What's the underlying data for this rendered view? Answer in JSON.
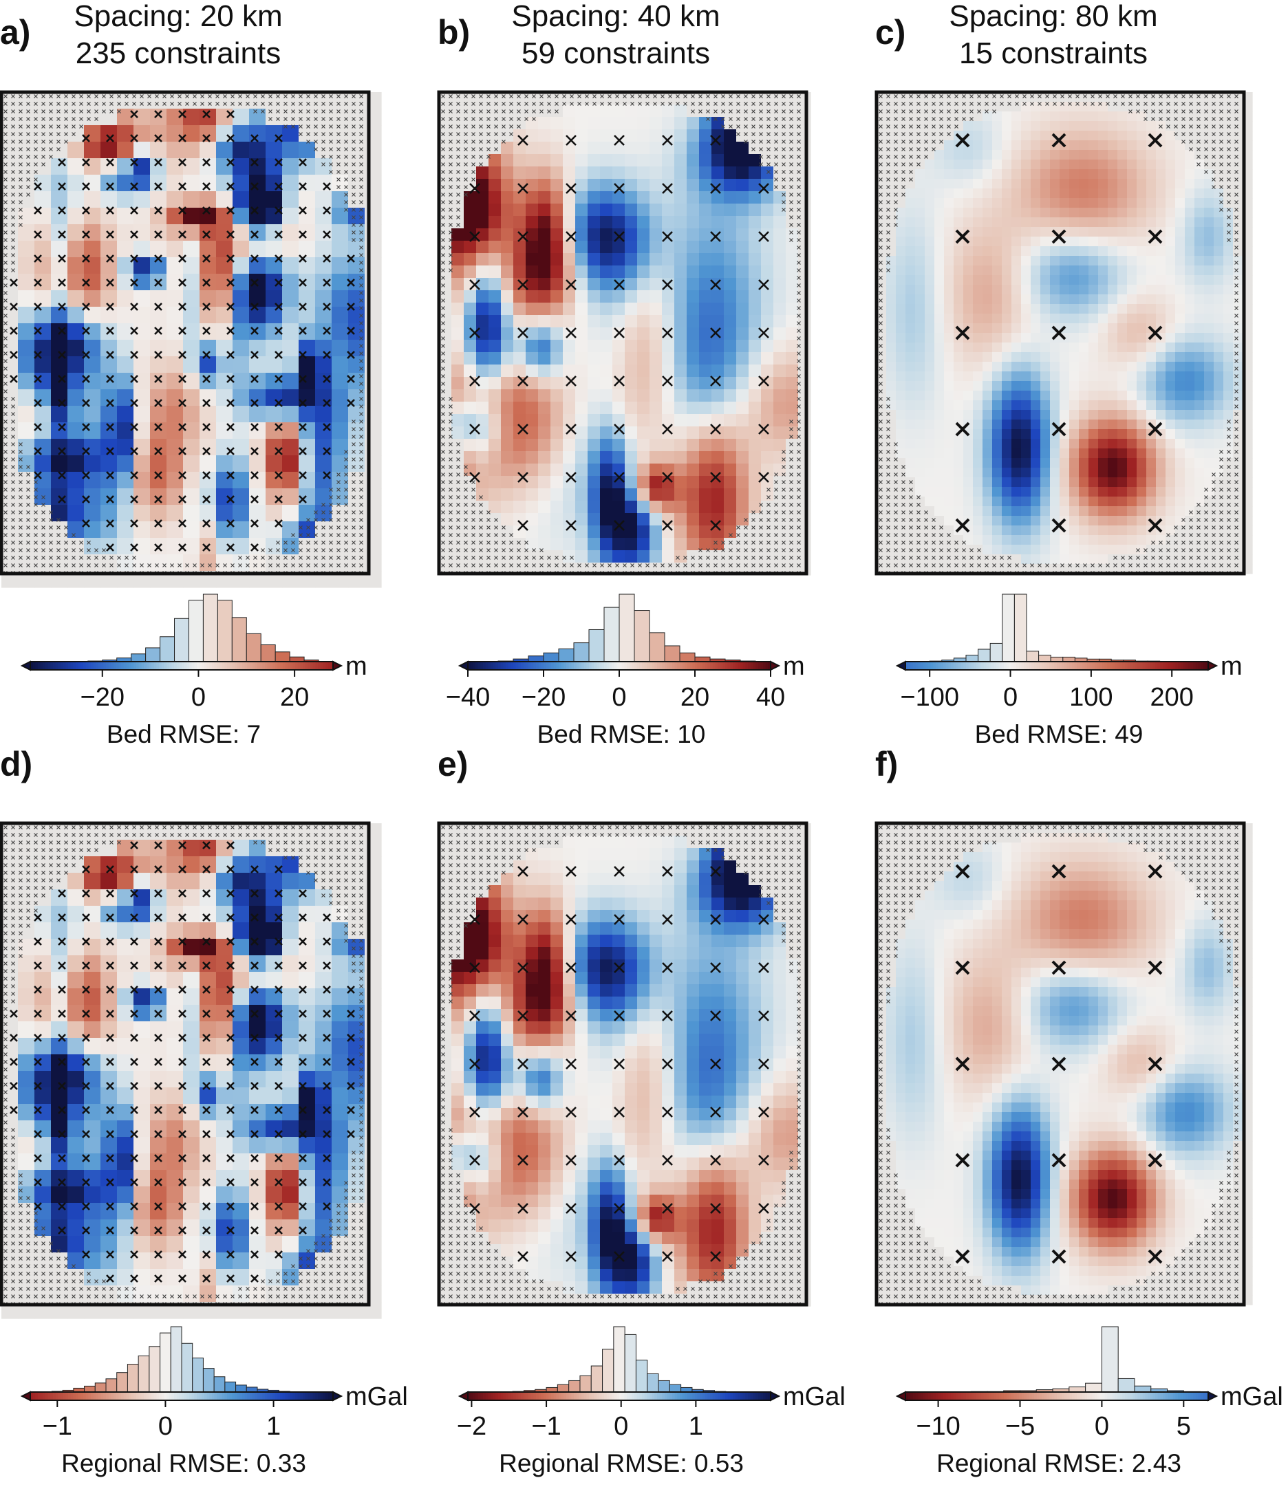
{
  "figure": {
    "panels": [
      {
        "letter": "a)",
        "title": [
          "Spacing: 20 km",
          "235 constraints"
        ],
        "unit": "m",
        "stat": "Bed RMSE: 7"
      },
      {
        "letter": "b)",
        "title": [
          "Spacing: 40 km",
          "59 constraints"
        ],
        "unit": "m",
        "stat": "Bed RMSE: 10"
      },
      {
        "letter": "c)",
        "title": [
          "Spacing: 80 km",
          "15 constraints"
        ],
        "unit": "m",
        "stat": "Bed RMSE: 49"
      },
      {
        "letter": "d)",
        "title": [],
        "unit": "mGal",
        "stat": "Regional RMSE: 0.33"
      },
      {
        "letter": "e)",
        "title": [],
        "unit": "mGal",
        "stat": "Regional RMSE: 0.53"
      },
      {
        "letter": "f)",
        "title": [],
        "unit": "mGal",
        "stat": "Regional RMSE: 2.43"
      }
    ]
  },
  "chart_data": [
    {
      "type": "heatmap",
      "panel": "a",
      "title": "Spacing: 20 km 235 constraints",
      "colorbar": {
        "label": "m",
        "range": [
          -35,
          28
        ],
        "ticks": [
          -20,
          0,
          20
        ],
        "colormap": "diverging blue-white-red"
      },
      "histogram_bins": [
        -35,
        -32,
        -29,
        -26,
        -23,
        -20,
        -17,
        -14,
        -11,
        -8,
        -5,
        -2,
        1,
        4,
        7,
        10,
        13,
        16,
        19,
        22,
        25,
        28
      ],
      "histogram_counts": [
        0,
        0,
        1,
        1,
        2,
        3,
        5,
        9,
        15,
        26,
        44,
        62,
        68,
        62,
        45,
        29,
        18,
        11,
        6,
        3,
        1
      ],
      "constraint_spacing_km": 20,
      "constraint_count": 235,
      "rmse": "Bed RMSE: 7"
    },
    {
      "type": "heatmap",
      "panel": "b",
      "title": "Spacing: 40 km 59 constraints",
      "colorbar": {
        "label": "m",
        "range": [
          -40,
          40
        ],
        "ticks": [
          -40,
          -20,
          0,
          20,
          40
        ],
        "colormap": "diverging blue-white-red"
      },
      "histogram_bins": [
        -40,
        -36,
        -32,
        -28,
        -24,
        -20,
        -16,
        -12,
        -8,
        -4,
        0,
        4,
        8,
        12,
        16,
        20,
        24,
        28,
        32,
        36,
        40
      ],
      "histogram_counts": [
        1,
        1,
        2,
        4,
        7,
        10,
        14,
        20,
        33,
        55,
        68,
        52,
        30,
        17,
        10,
        6,
        4,
        3,
        2,
        1
      ],
      "constraint_spacing_km": 40,
      "constraint_count": 59,
      "rmse": "Bed RMSE: 10"
    },
    {
      "type": "heatmap",
      "panel": "c",
      "title": "Spacing: 80 km 15 constraints",
      "colorbar": {
        "label": "m",
        "range": [
          -130,
          245
        ],
        "ticks": [
          -100,
          0,
          100,
          200
        ],
        "colormap": "diverging blue-white-red"
      },
      "histogram_bins": [
        -130,
        -115,
        -100,
        -85,
        -70,
        -55,
        -40,
        -25,
        -10,
        5,
        20,
        35,
        50,
        65,
        80,
        95,
        110,
        125,
        140,
        155,
        170,
        185,
        200,
        215,
        230,
        245
      ],
      "histogram_counts": [
        0,
        1,
        2,
        3,
        5,
        8,
        14,
        20,
        70,
        70,
        12,
        8,
        6,
        6,
        5,
        4,
        4,
        3,
        3,
        2,
        2,
        1,
        1,
        1,
        1
      ],
      "constraint_spacing_km": 80,
      "constraint_count": 15,
      "rmse": "Bed RMSE: 49"
    },
    {
      "type": "heatmap",
      "panel": "d",
      "colorbar": {
        "label": "mGal",
        "range": [
          -1.25,
          1.55
        ],
        "ticks": [
          -1,
          0,
          1
        ],
        "colormap": "diverging red-white-blue"
      },
      "histogram_bins": [
        -1.25,
        -1.15,
        -1.05,
        -0.95,
        -0.85,
        -0.75,
        -0.65,
        -0.55,
        -0.45,
        -0.35,
        -0.25,
        -0.15,
        -0.05,
        0.05,
        0.15,
        0.25,
        0.35,
        0.45,
        0.55,
        0.65,
        0.75,
        0.85,
        0.95,
        1.05,
        1.15,
        1.25,
        1.35,
        1.45,
        1.55
      ],
      "histogram_counts": [
        1,
        1,
        2,
        3,
        5,
        7,
        10,
        14,
        20,
        28,
        36,
        45,
        58,
        64,
        48,
        34,
        24,
        16,
        11,
        8,
        6,
        4,
        3,
        2,
        1,
        1,
        1,
        0
      ],
      "rmse": "Regional RMSE: 0.33"
    },
    {
      "type": "heatmap",
      "panel": "e",
      "colorbar": {
        "label": "mGal",
        "range": [
          -2.05,
          2.0
        ],
        "ticks": [
          -2,
          -1,
          0,
          1
        ],
        "colormap": "diverging red-white-blue"
      },
      "histogram_bins": [
        -2.05,
        -1.9,
        -1.75,
        -1.6,
        -1.45,
        -1.3,
        -1.15,
        -1.0,
        -0.85,
        -0.7,
        -0.55,
        -0.4,
        -0.25,
        -0.1,
        0.05,
        0.2,
        0.35,
        0.5,
        0.65,
        0.8,
        0.95,
        1.1,
        1.25,
        1.4,
        1.55,
        1.7,
        1.85,
        2.0
      ],
      "histogram_counts": [
        0,
        1,
        1,
        1,
        2,
        3,
        4,
        6,
        9,
        13,
        18,
        28,
        45,
        68,
        60,
        34,
        20,
        13,
        9,
        6,
        4,
        3,
        2,
        1,
        1,
        1,
        0
      ],
      "rmse": "Regional RMSE: 0.53"
    },
    {
      "type": "heatmap",
      "panel": "f",
      "colorbar": {
        "label": "mGal",
        "range": [
          -12,
          6.5
        ],
        "ticks": [
          -10,
          -5,
          0,
          5
        ],
        "colormap": "diverging red-white-blue"
      },
      "histogram_bins": [
        -12,
        -11,
        -10,
        -9,
        -8,
        -7,
        -6,
        -5,
        -4,
        -3,
        -2,
        -1,
        0,
        1,
        2,
        3,
        4,
        5,
        6
      ],
      "histogram_counts": [
        0,
        1,
        1,
        1,
        2,
        2,
        3,
        3,
        4,
        5,
        7,
        11,
        72,
        16,
        8,
        5,
        3,
        2
      ],
      "rmse": "Regional RMSE: 2.43"
    }
  ]
}
